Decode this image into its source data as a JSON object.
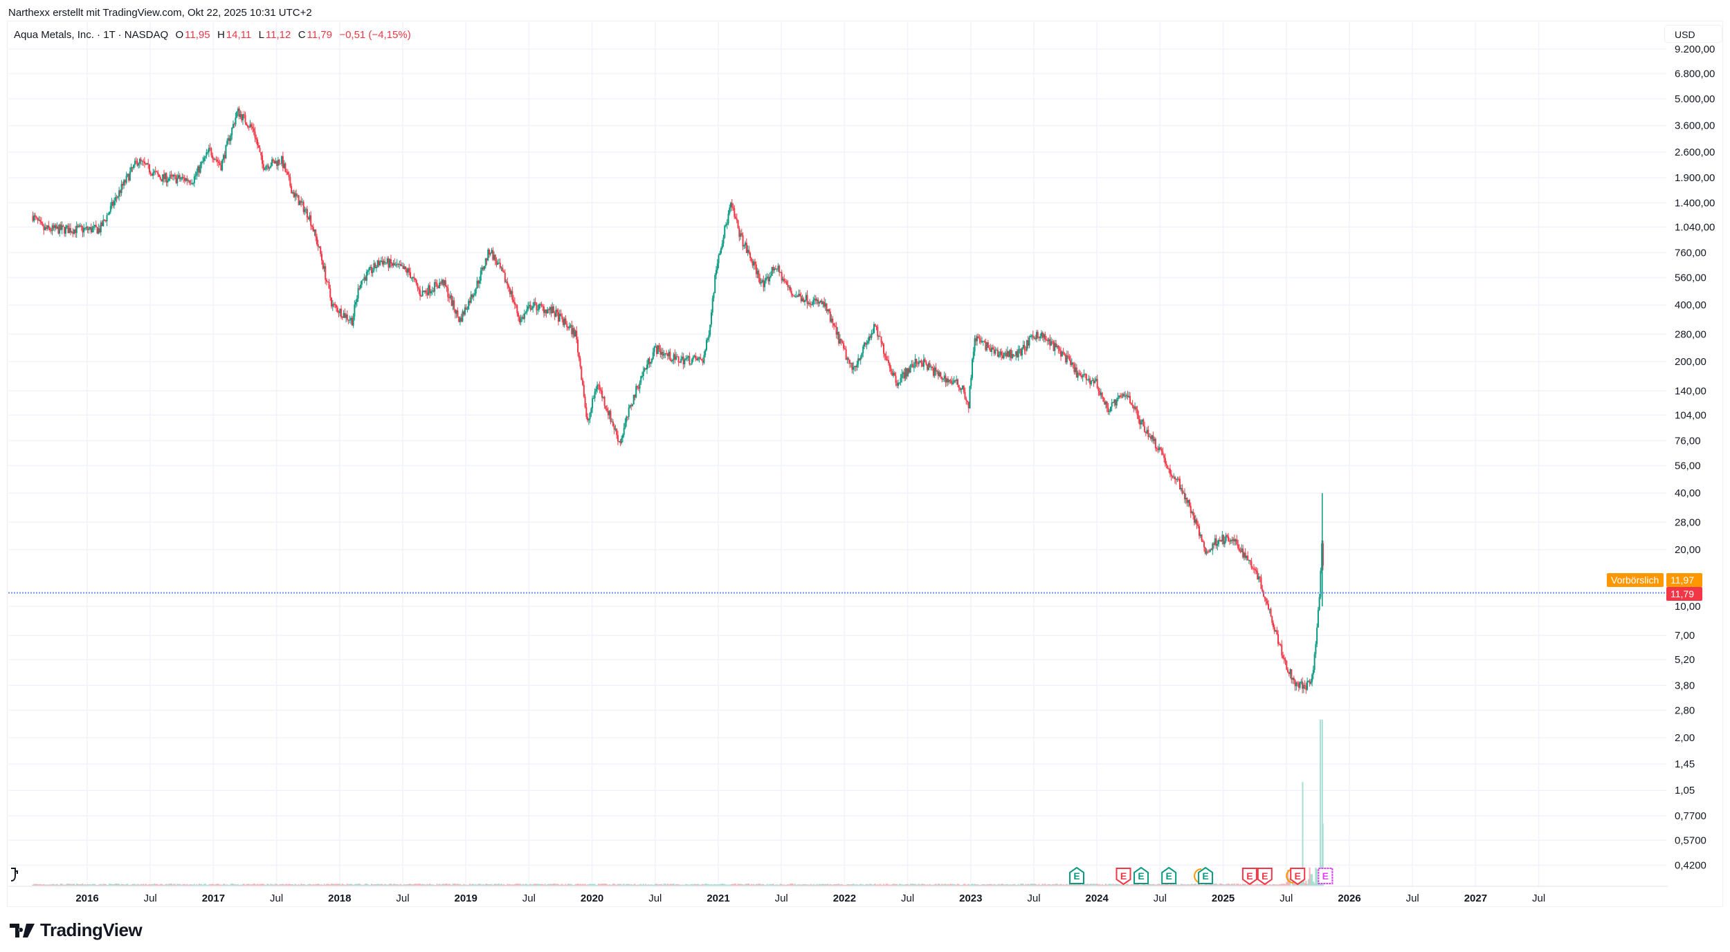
{
  "header": {
    "credit": "Narthexx erstellt mit TradingView.com, Okt 22, 2025 10:31 UTC+2",
    "symbol": "Aqua Metals, Inc. · 1T · NASDAQ",
    "o_label": "O",
    "o": "11,95",
    "h_label": "H",
    "h": "14,11",
    "l_label": "L",
    "l": "11,12",
    "c_label": "C",
    "c": "11,79",
    "change": "−0,51 (−4,15%)"
  },
  "currency": "USD",
  "premarket": {
    "label": "Vorbörslich",
    "value": "11,97",
    "color": "#ff9800"
  },
  "last_price": {
    "value": "11,79",
    "color": "#f23645"
  },
  "logo": "TradingView",
  "colors": {
    "up": "#089981",
    "down": "#f23645",
    "grid": "#f0f3fa",
    "earn_green": "#089981",
    "earn_red": "#f23645",
    "earn_future": "#e040fb"
  },
  "chart_data": {
    "type": "candlestick",
    "title": "Aqua Metals, Inc. · 1T · NASDAQ",
    "scale": "log",
    "ylim": [
      0.36,
      10500
    ],
    "xlim": [
      2015.4,
      2027.9
    ],
    "y_ticks": [
      "9.200,00",
      "6.800,00",
      "5.000,00",
      "3.600,00",
      "2.600,00",
      "1.900,00",
      "1.400,00",
      "1.040,00",
      "760,00",
      "560,00",
      "400,00",
      "280,00",
      "200,00",
      "140,00",
      "104,00",
      "76,00",
      "56,00",
      "40,00",
      "28,00",
      "20,00",
      "10,00",
      "7,00",
      "5,20",
      "3,80",
      "2,80",
      "2,00",
      "1,45",
      "1,05",
      "0,7700",
      "0,5700",
      "0,4200"
    ],
    "y_tick_values": [
      9200,
      6800,
      5000,
      3600,
      2600,
      1900,
      1400,
      1040,
      760,
      560,
      400,
      280,
      200,
      140,
      104,
      76,
      56,
      40,
      28,
      20,
      10,
      7,
      5.2,
      3.8,
      2.8,
      2,
      1.45,
      1.05,
      0.77,
      0.57,
      0.42
    ],
    "x_ticks": [
      {
        "label": "2016",
        "t": 2016,
        "bold": true
      },
      {
        "label": "Jul",
        "t": 2016.5
      },
      {
        "label": "2017",
        "t": 2017,
        "bold": true
      },
      {
        "label": "Jul",
        "t": 2017.5
      },
      {
        "label": "2018",
        "t": 2018,
        "bold": true
      },
      {
        "label": "Jul",
        "t": 2018.5
      },
      {
        "label": "2019",
        "t": 2019,
        "bold": true
      },
      {
        "label": "Jul",
        "t": 2019.5
      },
      {
        "label": "2020",
        "t": 2020,
        "bold": true
      },
      {
        "label": "Jul",
        "t": 2020.5
      },
      {
        "label": "2021",
        "t": 2021,
        "bold": true
      },
      {
        "label": "Jul",
        "t": 2021.5
      },
      {
        "label": "2022",
        "t": 2022,
        "bold": true
      },
      {
        "label": "Jul",
        "t": 2022.5
      },
      {
        "label": "2023",
        "t": 2023,
        "bold": true
      },
      {
        "label": "Jul",
        "t": 2023.5
      },
      {
        "label": "2024",
        "t": 2024,
        "bold": true
      },
      {
        "label": "Jul",
        "t": 2024.5
      },
      {
        "label": "2025",
        "t": 2025,
        "bold": true
      },
      {
        "label": "Jul",
        "t": 2025.5
      },
      {
        "label": "2026",
        "t": 2026,
        "bold": true
      },
      {
        "label": "Jul",
        "t": 2026.5
      },
      {
        "label": "2027",
        "t": 2027,
        "bold": true
      },
      {
        "label": "Jul",
        "t": 2027.5
      }
    ],
    "price_path": [
      [
        2015.57,
        1190
      ],
      [
        2015.65,
        1010
      ],
      [
        2016.1,
        1010
      ],
      [
        2016.2,
        1360
      ],
      [
        2016.27,
        1670
      ],
      [
        2016.4,
        2350
      ],
      [
        2016.58,
        1900
      ],
      [
        2016.84,
        1860
      ],
      [
        2016.97,
        2670
      ],
      [
        2017.06,
        2200
      ],
      [
        2017.15,
        3500
      ],
      [
        2017.19,
        4300
      ],
      [
        2017.32,
        3400
      ],
      [
        2017.39,
        2200
      ],
      [
        2017.54,
        2350
      ],
      [
        2017.63,
        1580
      ],
      [
        2017.76,
        1190
      ],
      [
        2017.85,
        740
      ],
      [
        2017.94,
        400
      ],
      [
        2018.1,
        330
      ],
      [
        2018.16,
        530
      ],
      [
        2018.33,
        690
      ],
      [
        2018.55,
        600
      ],
      [
        2018.64,
        460
      ],
      [
        2018.82,
        530
      ],
      [
        2018.95,
        330
      ],
      [
        2019.08,
        500
      ],
      [
        2019.19,
        790
      ],
      [
        2019.34,
        500
      ],
      [
        2019.43,
        330
      ],
      [
        2019.52,
        400
      ],
      [
        2019.69,
        370
      ],
      [
        2019.87,
        280
      ],
      [
        2019.93,
        146
      ],
      [
        2019.96,
        91
      ],
      [
        2020.04,
        155
      ],
      [
        2020.22,
        74
      ],
      [
        2020.31,
        119
      ],
      [
        2020.39,
        167
      ],
      [
        2020.5,
        235
      ],
      [
        2020.66,
        205
      ],
      [
        2020.88,
        205
      ],
      [
        2020.92,
        270
      ],
      [
        2020.99,
        690
      ],
      [
        2021.1,
        1360
      ],
      [
        2021.18,
        910
      ],
      [
        2021.36,
        500
      ],
      [
        2021.45,
        650
      ],
      [
        2021.58,
        460
      ],
      [
        2021.84,
        400
      ],
      [
        2021.97,
        250
      ],
      [
        2022.06,
        180
      ],
      [
        2022.24,
        305
      ],
      [
        2022.41,
        156
      ],
      [
        2022.59,
        205
      ],
      [
        2022.76,
        167
      ],
      [
        2022.94,
        146
      ],
      [
        2022.98,
        112
      ],
      [
        2023.03,
        270
      ],
      [
        2023.2,
        220
      ],
      [
        2023.38,
        220
      ],
      [
        2023.53,
        285
      ],
      [
        2023.73,
        220
      ],
      [
        2023.86,
        167
      ],
      [
        2023.99,
        156
      ],
      [
        2024.08,
        112
      ],
      [
        2024.24,
        136
      ],
      [
        2024.34,
        97
      ],
      [
        2024.52,
        65
      ],
      [
        2024.6,
        46
      ],
      [
        2024.62,
        50
      ],
      [
        2024.74,
        33
      ],
      [
        2024.87,
        19
      ],
      [
        2024.96,
        23
      ],
      [
        2025.09,
        22
      ],
      [
        2025.26,
        15.6
      ],
      [
        2025.39,
        8.5
      ],
      [
        2025.48,
        5.3
      ],
      [
        2025.57,
        3.8
      ],
      [
        2025.7,
        3.8
      ],
      [
        2025.74,
        7.4
      ],
      [
        2025.76,
        10.4
      ],
      [
        2025.78,
        22
      ],
      [
        2025.8,
        11.79
      ]
    ],
    "spike_high": 40,
    "earnings": [
      {
        "t": 2023.84,
        "type": "beat"
      },
      {
        "t": 2024.21,
        "type": "miss"
      },
      {
        "t": 2024.35,
        "type": "beat"
      },
      {
        "t": 2024.57,
        "type": "beat"
      },
      {
        "t": 2024.86,
        "type": "beat",
        "split": true
      },
      {
        "t": 2025.21,
        "type": "miss"
      },
      {
        "t": 2025.33,
        "type": "miss"
      },
      {
        "t": 2025.59,
        "type": "miss",
        "split": true
      },
      {
        "t": 2025.81,
        "type": "upcoming"
      }
    ],
    "earnings_letter": "E"
  }
}
